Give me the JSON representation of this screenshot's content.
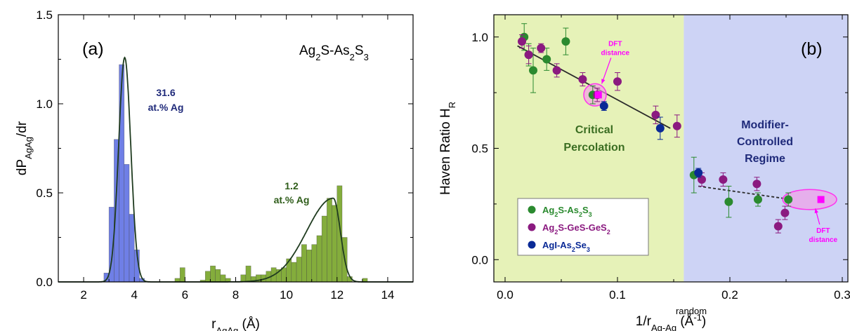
{
  "chart_data": [
    {
      "type": "bar",
      "panel_label": "(a)",
      "title": "Ag2S-As2S3",
      "xlabel": "r",
      "xlabel_sub": "AgAg",
      "xlabel_unit": "(Å)",
      "ylabel": "dP",
      "ylabel_sub": "AgAg",
      "ylabel_tail": "/dr",
      "xlim": [
        1,
        15
      ],
      "ylim": [
        0,
        1.5
      ],
      "xticks": [
        2,
        4,
        6,
        8,
        10,
        12,
        14
      ],
      "yticks": [
        0.0,
        0.5,
        1.0,
        1.5
      ],
      "ytick_labels": [
        "0.0",
        "0.5",
        "1.0",
        "1.5"
      ],
      "bin_width": 0.2,
      "series": [
        {
          "name": "31.6 at.% Ag",
          "color": "#6f7fe6",
          "label_lines": [
            "31.6",
            "at.% Ag"
          ],
          "label_color": "#1f2a7a",
          "bins": [
            [
              2.9,
              0.05
            ],
            [
              3.1,
              0.42
            ],
            [
              3.3,
              0.8
            ],
            [
              3.5,
              1.22
            ],
            [
              3.7,
              0.66
            ],
            [
              3.9,
              0.38
            ],
            [
              4.1,
              0.18
            ],
            [
              4.3,
              0.02
            ]
          ],
          "fit": {
            "mu": 3.62,
            "sigma": 0.24,
            "amp": 1.26
          }
        },
        {
          "name": "1.2 at.% Ag",
          "color": "#84ad3c",
          "label_lines": [
            "1.2",
            "at.% Ag"
          ],
          "label_color": "#2f5d1a",
          "bins": [
            [
              5.7,
              0.02
            ],
            [
              5.9,
              0.08
            ],
            [
              6.7,
              0.01
            ],
            [
              6.9,
              0.06
            ],
            [
              7.1,
              0.09
            ],
            [
              7.3,
              0.07
            ],
            [
              7.5,
              0.04
            ],
            [
              7.7,
              0.02
            ],
            [
              8.3,
              0.04
            ],
            [
              8.5,
              0.09
            ],
            [
              8.7,
              0.03
            ],
            [
              8.9,
              0.04
            ],
            [
              9.1,
              0.04
            ],
            [
              9.3,
              0.06
            ],
            [
              9.5,
              0.08
            ],
            [
              9.7,
              0.07
            ],
            [
              9.9,
              0.08
            ],
            [
              10.1,
              0.13
            ],
            [
              10.3,
              0.11
            ],
            [
              10.5,
              0.14
            ],
            [
              10.7,
              0.21
            ],
            [
              10.9,
              0.18
            ],
            [
              11.1,
              0.21
            ],
            [
              11.3,
              0.26
            ],
            [
              11.5,
              0.37
            ],
            [
              11.7,
              0.47
            ],
            [
              11.9,
              0.43
            ],
            [
              12.1,
              0.54
            ],
            [
              12.3,
              0.25
            ],
            [
              12.5,
              0.03
            ],
            [
              13.1,
              0.02
            ]
          ],
          "fit": {
            "peak": 11.85,
            "amp": 0.47,
            "left_width": 1.05,
            "right_width": 0.28
          }
        }
      ]
    },
    {
      "type": "scatter",
      "panel_label": "(b)",
      "xlabel": "1/r",
      "xlabel_sup": "random",
      "xlabel_sub": "Ag-Ag",
      "xlabel_unit_open": " (Å",
      "xlabel_unit_exp": "-1",
      "xlabel_unit_close": ")",
      "ylabel": "Haven Ratio H",
      "ylabel_sub": "R",
      "xlim": [
        -0.01,
        0.305
      ],
      "ylim": [
        -0.1,
        1.1
      ],
      "xticks": [
        0.0,
        0.1,
        0.2,
        0.3
      ],
      "xtick_labels": [
        "0.0",
        "0.1",
        "0.2",
        "0.3"
      ],
      "yticks": [
        0.0,
        0.5,
        1.0
      ],
      "ytick_labels": [
        "0.0",
        "0.5",
        "1.0"
      ],
      "regions": [
        {
          "name": "Critical Percolation",
          "label_lines": [
            "Critical",
            "Percolation"
          ],
          "x_from": -0.01,
          "x_to": 0.159,
          "color": "#e6f2b8",
          "label_color": "#3b6e22"
        },
        {
          "name": "Modifier-Controlled Regime",
          "label_lines": [
            "Modifier-",
            "Controlled",
            "Regime"
          ],
          "x_from": 0.159,
          "x_to": 0.305,
          "color": "#cdd3f5",
          "label_color": "#1f2a7a"
        }
      ],
      "series": [
        {
          "name": "Ag2S-As2S3",
          "legend_parts": [
            [
              "Ag",
              ""
            ],
            [
              "2",
              "sub"
            ],
            [
              "S-As",
              ""
            ],
            [
              "2",
              "sub"
            ],
            [
              "S",
              ""
            ],
            [
              "3",
              "sub"
            ]
          ],
          "color": "#2b8a2f",
          "points": [
            [
              0.017,
              1.0,
              0.06
            ],
            [
              0.021,
              0.92,
              0.05
            ],
            [
              0.025,
              0.85,
              0.1
            ],
            [
              0.037,
              0.9,
              0.05
            ],
            [
              0.054,
              0.98,
              0.06
            ],
            [
              0.078,
              0.74,
              0.04
            ],
            [
              0.168,
              0.38,
              0.08
            ],
            [
              0.199,
              0.26,
              0.07
            ],
            [
              0.225,
              0.27,
              0.03
            ],
            [
              0.252,
              0.27,
              0.03
            ]
          ]
        },
        {
          "name": "Ag2S-GeS-GeS2",
          "legend_parts": [
            [
              "Ag",
              ""
            ],
            [
              "2",
              "sub"
            ],
            [
              "S-GeS-GeS",
              ""
            ],
            [
              "2",
              "sub"
            ]
          ],
          "color": "#8b1a80",
          "points": [
            [
              0.015,
              0.98,
              0.03
            ],
            [
              0.021,
              0.92,
              0.04
            ],
            [
              0.032,
              0.95,
              0.02
            ],
            [
              0.046,
              0.85,
              0.03
            ],
            [
              0.069,
              0.81,
              0.03
            ],
            [
              0.082,
              0.74,
              0.03
            ],
            [
              0.1,
              0.8,
              0.04
            ],
            [
              0.134,
              0.65,
              0.04
            ],
            [
              0.153,
              0.6,
              0.05
            ],
            [
              0.175,
              0.36,
              0.03
            ],
            [
              0.194,
              0.36,
              0.03
            ],
            [
              0.224,
              0.34,
              0.03
            ],
            [
              0.243,
              0.15,
              0.03
            ],
            [
              0.249,
              0.21,
              0.03
            ]
          ]
        },
        {
          "name": "AgI-As2Se3",
          "legend_parts": [
            [
              "AgI-As",
              ""
            ],
            [
              "2",
              "sub"
            ],
            [
              "Se",
              ""
            ],
            [
              "3",
              "sub"
            ]
          ],
          "color": "#0a2a96",
          "points": [
            [
              0.088,
              0.69,
              0.02
            ],
            [
              0.138,
              0.59,
              0.05
            ],
            [
              0.172,
              0.39,
              0.02
            ]
          ]
        },
        {
          "name": "DFT distance",
          "color": "#ff00ff",
          "marker": "square",
          "points": [
            [
              0.083,
              0.74
            ],
            [
              0.281,
              0.27
            ]
          ]
        }
      ],
      "lines": [
        {
          "style": "solid",
          "color": "#2a2a2a",
          "from": [
            0.011,
            0.96
          ],
          "to": [
            0.147,
            0.59
          ]
        },
        {
          "style": "dashed",
          "color": "#2a2a2a",
          "from": [
            0.172,
            0.33
          ],
          "to": [
            0.255,
            0.27
          ]
        }
      ],
      "ellipses": [
        {
          "cx": 0.08,
          "cy": 0.74,
          "rx": 0.01,
          "ry": 0.05
        },
        {
          "cx": 0.271,
          "cy": 0.27,
          "rx": 0.024,
          "ry": 0.045
        }
      ],
      "annotations": [
        {
          "label_lines": [
            "DFT",
            "distance"
          ],
          "text_at": [
            0.098,
            0.96
          ],
          "arrow_to": [
            0.086,
            0.79
          ],
          "color": "#ff00ff"
        },
        {
          "label_lines": [
            "DFT",
            "distance"
          ],
          "text_at": [
            0.283,
            0.12
          ],
          "arrow_to": [
            0.276,
            0.23
          ],
          "color": "#ff00ff"
        }
      ]
    }
  ]
}
